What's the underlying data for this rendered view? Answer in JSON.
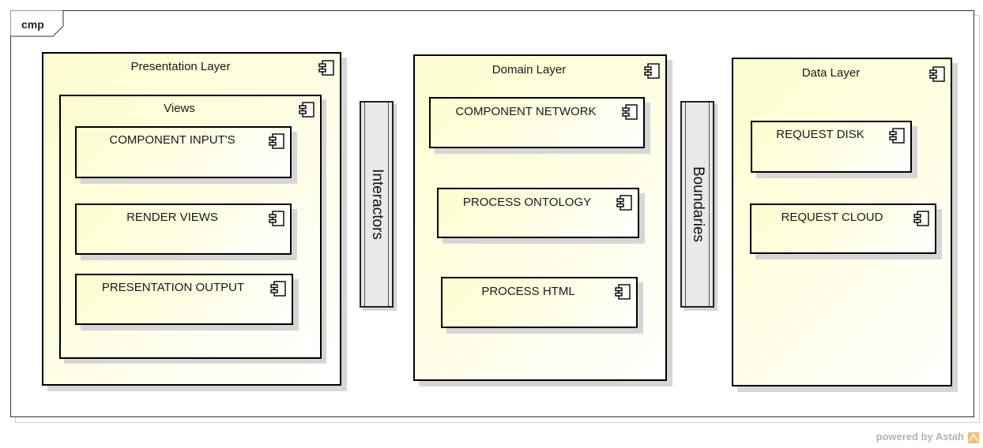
{
  "frame": {
    "label": "cmp"
  },
  "presentation_layer": {
    "title": "Presentation Layer",
    "views": {
      "title": "Views",
      "components": [
        "COMPONENT INPUT'S",
        "RENDER VIEWS",
        "PRESENTATION OUTPUT"
      ]
    }
  },
  "interfaces": {
    "interactors": "Interactors",
    "boundaries": "Boundaries"
  },
  "domain_layer": {
    "title": "Domain Layer",
    "components": [
      "COMPONENT NETWORK",
      "PROCESS ONTOLOGY",
      "PROCESS HTML"
    ]
  },
  "data_layer": {
    "title": "Data Layer",
    "components": [
      "REQUEST DISK",
      "REQUEST CLOUD"
    ]
  },
  "footer": {
    "text": "powered by Astah"
  },
  "colors": {
    "component_fill": "#fdfdcf",
    "border": "#000000",
    "shadow": "#d6d6d6",
    "interface_fill": "#e9e9e9"
  },
  "icon": "component-icon"
}
